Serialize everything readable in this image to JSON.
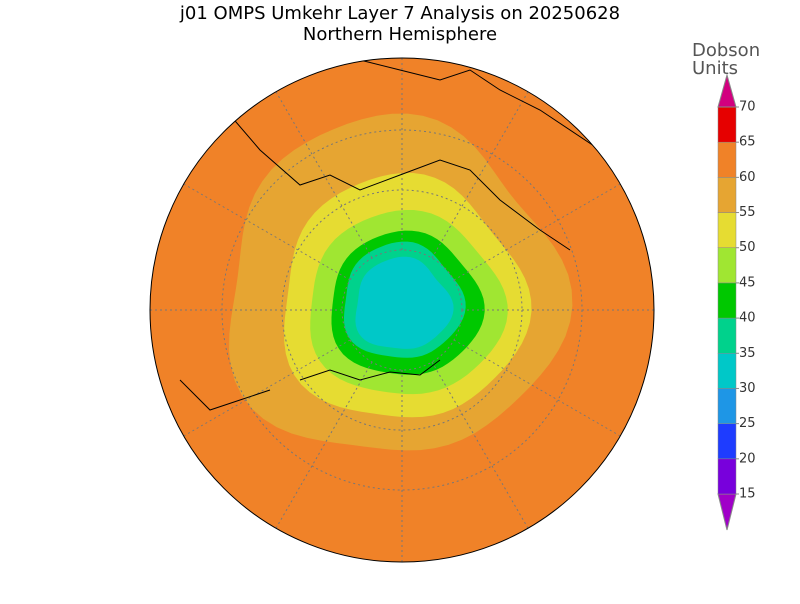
{
  "title": "j01 OMPS Umkehr Layer 7 Analysis on 20250628",
  "subtitle": "Northern Hemisphere",
  "colorbar": {
    "label": [
      "Dobson",
      "Units"
    ],
    "ticks": [
      15,
      20,
      25,
      30,
      35,
      40,
      45,
      50,
      55,
      60,
      65,
      70
    ],
    "colors": [
      "#a000c8",
      "#7800dc",
      "#1e3cff",
      "#1e96e6",
      "#00c8c8",
      "#00d28c",
      "#00c800",
      "#a0e632",
      "#e6dc32",
      "#e6a532",
      "#f08228",
      "#e60000",
      "#d2007f"
    ]
  }
}
